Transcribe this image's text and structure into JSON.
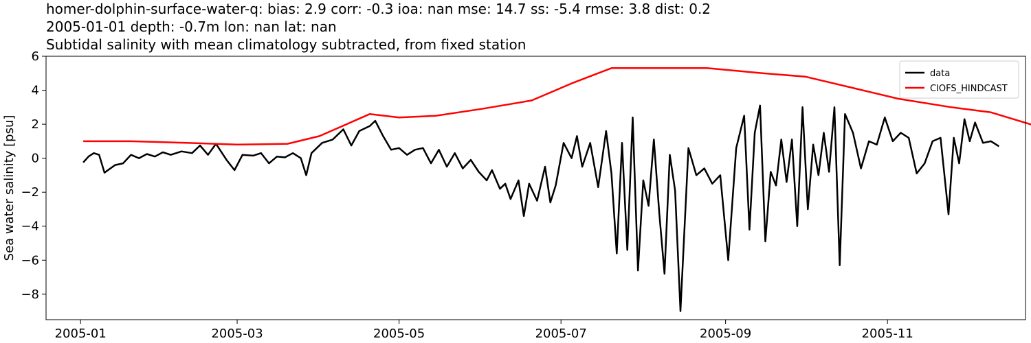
{
  "chart_data": {
    "type": "line",
    "title_lines": [
      "homer-dolphin-surface-water-q: bias: 2.9  corr: -0.3  ioa: nan  mse: 14.7  ss: -5.4  rmse: 3.8  dist: 0.2",
      "2005-01-01 depth: -0.7m lon: nan lat: nan",
      "Subtidal salinity with mean climatology subtracted, from fixed station"
    ],
    "xlabel": "",
    "ylabel": "Sea water salinity [psu]",
    "xlim": [
      "2004-12-19",
      "2005-12-23"
    ],
    "ylim": [
      -9.5,
      6.0
    ],
    "xticks": [
      "2005-01",
      "2005-03",
      "2005-05",
      "2005-07",
      "2005-09",
      "2005-11"
    ],
    "yticks": [
      "6",
      "4",
      "2",
      "0",
      "−2",
      "−4",
      "−6",
      "−8"
    ],
    "grid": false,
    "legend_position": "upper right",
    "series": [
      {
        "name": "data",
        "color": "#000000",
        "points": [
          [
            "2005-01-02",
            -0.25
          ],
          [
            "2005-01-04",
            0.1
          ],
          [
            "2005-01-06",
            0.3
          ],
          [
            "2005-01-08",
            0.2
          ],
          [
            "2005-01-10",
            -0.85
          ],
          [
            "2005-01-14",
            -0.4
          ],
          [
            "2005-01-17",
            -0.3
          ],
          [
            "2005-01-20",
            0.2
          ],
          [
            "2005-01-23",
            0.0
          ],
          [
            "2005-01-26",
            0.25
          ],
          [
            "2005-01-29",
            0.1
          ],
          [
            "2005-02-01",
            0.35
          ],
          [
            "2005-02-04",
            0.2
          ],
          [
            "2005-02-08",
            0.4
          ],
          [
            "2005-02-12",
            0.3
          ],
          [
            "2005-02-15",
            0.75
          ],
          [
            "2005-02-18",
            0.2
          ],
          [
            "2005-02-21",
            0.85
          ],
          [
            "2005-02-25",
            -0.1
          ],
          [
            "2005-02-28",
            -0.7
          ],
          [
            "2005-03-03",
            0.2
          ],
          [
            "2005-03-07",
            0.15
          ],
          [
            "2005-03-10",
            0.3
          ],
          [
            "2005-03-13",
            -0.3
          ],
          [
            "2005-03-16",
            0.1
          ],
          [
            "2005-03-19",
            0.05
          ],
          [
            "2005-03-22",
            0.3
          ],
          [
            "2005-03-25",
            0.0
          ],
          [
            "2005-03-27",
            -1.0
          ],
          [
            "2005-03-29",
            0.3
          ],
          [
            "2005-04-02",
            0.9
          ],
          [
            "2005-04-06",
            1.1
          ],
          [
            "2005-04-10",
            1.7
          ],
          [
            "2005-04-13",
            0.75
          ],
          [
            "2005-04-16",
            1.6
          ],
          [
            "2005-04-20",
            1.9
          ],
          [
            "2005-04-22",
            2.2
          ],
          [
            "2005-04-25",
            1.3
          ],
          [
            "2005-04-28",
            0.5
          ],
          [
            "2005-05-01",
            0.6
          ],
          [
            "2005-05-04",
            0.2
          ],
          [
            "2005-05-07",
            0.5
          ],
          [
            "2005-05-10",
            0.6
          ],
          [
            "2005-05-13",
            -0.3
          ],
          [
            "2005-05-16",
            0.5
          ],
          [
            "2005-05-19",
            -0.5
          ],
          [
            "2005-05-22",
            0.3
          ],
          [
            "2005-05-25",
            -0.6
          ],
          [
            "2005-05-28",
            -0.1
          ],
          [
            "2005-05-31",
            -0.8
          ],
          [
            "2005-06-03",
            -1.3
          ],
          [
            "2005-06-05",
            -0.7
          ],
          [
            "2005-06-08",
            -1.8
          ],
          [
            "2005-06-10",
            -1.5
          ],
          [
            "2005-06-12",
            -2.4
          ],
          [
            "2005-06-15",
            -1.3
          ],
          [
            "2005-06-17",
            -3.4
          ],
          [
            "2005-06-19",
            -1.5
          ],
          [
            "2005-06-22",
            -2.5
          ],
          [
            "2005-06-25",
            -0.5
          ],
          [
            "2005-06-27",
            -2.6
          ],
          [
            "2005-06-29",
            -1.6
          ],
          [
            "2005-07-02",
            0.9
          ],
          [
            "2005-07-05",
            0.0
          ],
          [
            "2005-07-07",
            1.3
          ],
          [
            "2005-07-09",
            -0.5
          ],
          [
            "2005-07-12",
            0.9
          ],
          [
            "2005-07-15",
            -1.7
          ],
          [
            "2005-07-18",
            1.6
          ],
          [
            "2005-07-20",
            -0.9
          ],
          [
            "2005-07-22",
            -5.6
          ],
          [
            "2005-07-24",
            0.9
          ],
          [
            "2005-07-26",
            -5.4
          ],
          [
            "2005-07-28",
            2.4
          ],
          [
            "2005-07-30",
            -6.6
          ],
          [
            "2005-08-01",
            -1.3
          ],
          [
            "2005-08-03",
            -2.8
          ],
          [
            "2005-08-05",
            1.1
          ],
          [
            "2005-08-07",
            -3.2
          ],
          [
            "2005-08-09",
            -6.8
          ],
          [
            "2005-08-11",
            0.2
          ],
          [
            "2005-08-13",
            -1.9
          ],
          [
            "2005-08-15",
            -9.0
          ],
          [
            "2005-08-18",
            0.6
          ],
          [
            "2005-08-21",
            -1.0
          ],
          [
            "2005-08-24",
            -0.6
          ],
          [
            "2005-08-27",
            -1.5
          ],
          [
            "2005-08-30",
            -1.0
          ],
          [
            "2005-09-02",
            -6.0
          ],
          [
            "2005-09-05",
            0.6
          ],
          [
            "2005-09-08",
            2.5
          ],
          [
            "2005-09-10",
            -4.2
          ],
          [
            "2005-09-12",
            1.5
          ],
          [
            "2005-09-14",
            3.1
          ],
          [
            "2005-09-16",
            -4.9
          ],
          [
            "2005-09-18",
            -0.8
          ],
          [
            "2005-09-20",
            -1.6
          ],
          [
            "2005-09-22",
            1.1
          ],
          [
            "2005-09-24",
            -1.4
          ],
          [
            "2005-09-26",
            1.1
          ],
          [
            "2005-09-28",
            -4.0
          ],
          [
            "2005-09-30",
            3.0
          ],
          [
            "2005-10-02",
            -3.0
          ],
          [
            "2005-10-04",
            0.8
          ],
          [
            "2005-10-06",
            -1.0
          ],
          [
            "2005-10-08",
            1.5
          ],
          [
            "2005-10-10",
            -0.8
          ],
          [
            "2005-10-12",
            3.0
          ],
          [
            "2005-10-14",
            -6.3
          ],
          [
            "2005-10-16",
            2.6
          ],
          [
            "2005-10-19",
            1.5
          ],
          [
            "2005-10-22",
            -0.6
          ],
          [
            "2005-10-25",
            1.0
          ],
          [
            "2005-10-28",
            0.8
          ],
          [
            "2005-10-31",
            2.4
          ],
          [
            "2005-11-03",
            1.0
          ],
          [
            "2005-11-06",
            1.5
          ],
          [
            "2005-11-09",
            1.2
          ],
          [
            "2005-11-12",
            -0.9
          ],
          [
            "2005-11-15",
            -0.3
          ],
          [
            "2005-11-18",
            1.0
          ],
          [
            "2005-11-21",
            1.2
          ],
          [
            "2005-11-24",
            -3.3
          ],
          [
            "2005-11-26",
            1.2
          ],
          [
            "2005-11-28",
            -0.3
          ],
          [
            "2005-11-30",
            2.3
          ],
          [
            "2005-12-02",
            1.0
          ],
          [
            "2005-12-04",
            2.1
          ],
          [
            "2005-12-07",
            0.9
          ],
          [
            "2005-12-10",
            1.0
          ],
          [
            "2005-12-13",
            0.7
          ]
        ]
      },
      {
        "name": "CIOFS_HINDCAST",
        "color": "#ff0000",
        "points": [
          [
            "2005-01-02",
            1.0
          ],
          [
            "2005-01-20",
            1.0
          ],
          [
            "2005-02-10",
            0.9
          ],
          [
            "2005-03-01",
            0.8
          ],
          [
            "2005-03-20",
            0.85
          ],
          [
            "2005-04-01",
            1.3
          ],
          [
            "2005-04-20",
            2.6
          ],
          [
            "2005-05-01",
            2.4
          ],
          [
            "2005-05-15",
            2.5
          ],
          [
            "2005-06-01",
            2.9
          ],
          [
            "2005-06-20",
            3.4
          ],
          [
            "2005-07-05",
            4.4
          ],
          [
            "2005-07-20",
            5.3
          ],
          [
            "2005-08-05",
            5.3
          ],
          [
            "2005-08-25",
            5.3
          ],
          [
            "2005-09-15",
            5.0
          ],
          [
            "2005-10-01",
            4.8
          ],
          [
            "2005-10-20",
            4.1
          ],
          [
            "2005-11-05",
            3.5
          ],
          [
            "2005-11-25",
            3.0
          ],
          [
            "2005-12-10",
            2.7
          ],
          [
            "2005-12-29",
            1.8
          ]
        ]
      }
    ]
  }
}
